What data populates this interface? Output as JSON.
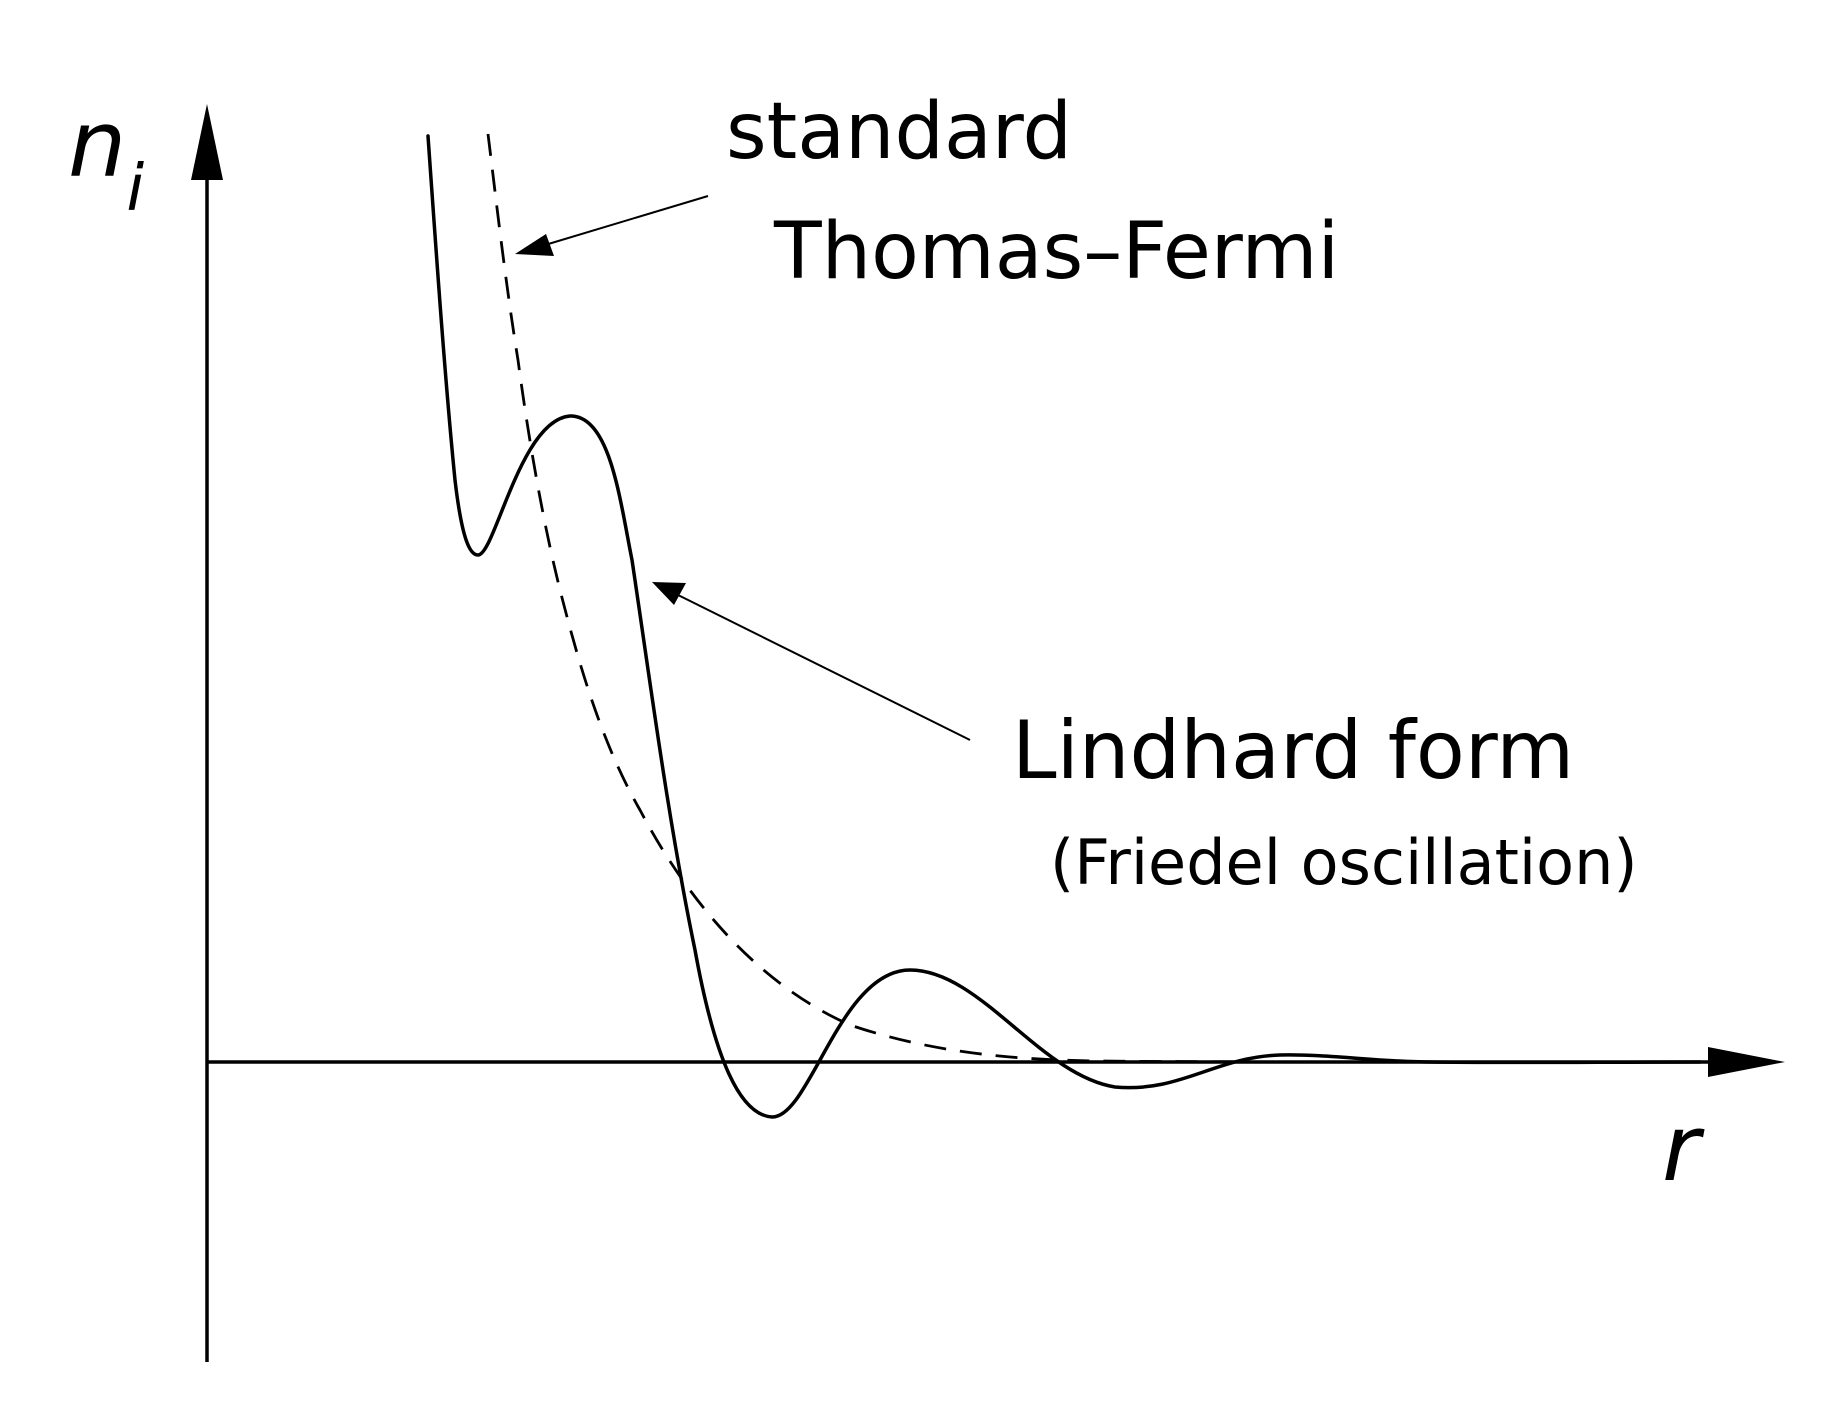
{
  "diagram": {
    "y_axis_symbol": "n",
    "y_axis_subscript": "i",
    "x_axis_symbol": "r",
    "label_standard_line1": "standard",
    "label_standard_line2": "Thomas–Fermi",
    "label_lindhard_line1": "Lindhard form",
    "label_lindhard_line2": "(Friedel oscillation)",
    "color": "#000000"
  }
}
